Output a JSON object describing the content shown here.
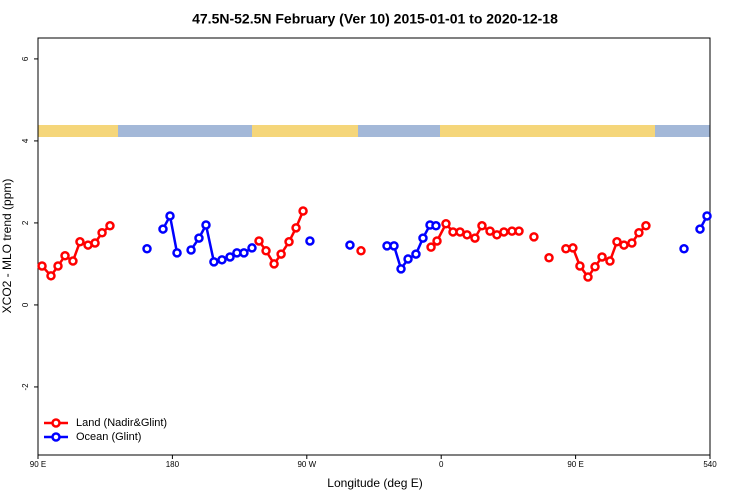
{
  "chart_data": {
    "type": "line",
    "title": "47.5N-52.5N February (Ver 10)   2015-01-01 to 2020-12-18",
    "x_label": "Longitude (deg E)",
    "y_label": "XCO2 - MLO trend (ppm)",
    "xlim": [
      90,
      540
    ],
    "ylim": [
      -3.66,
      6.51
    ],
    "xticks": [
      {
        "value": 90,
        "label": "90 E"
      },
      180,
      {
        "value": 270,
        "label": "90 W"
      },
      {
        "value": 360,
        "label": "0"
      },
      {
        "value": 450,
        "label": "90 E"
      },
      540
    ],
    "yticks": [
      -2,
      0,
      2,
      4,
      6
    ],
    "legend": "bottom-left",
    "series": [
      {
        "name": "Land (Nadir&Glint)",
        "color": "#ff0000",
        "x": [
          92.7,
          98.7,
          103.4,
          108.1,
          113.4,
          118.1,
          123.5,
          128.2,
          132.9,
          138.2,
          null,
          238.0,
          242.7,
          248.1,
          252.8,
          258.1,
          262.8,
          267.5,
          null,
          306.3,
          null,
          353.2,
          357.2,
          363.2,
          367.9,
          372.6,
          377.3,
          382.6,
          387.3,
          392.7,
          397.3,
          402.0,
          407.4,
          412.1,
          null,
          422.1,
          null,
          432.2,
          null,
          443.5,
          448.2,
          452.9,
          458.3,
          463.0,
          467.7,
          473.0,
          477.7,
          482.4,
          487.7,
          492.4,
          497.1
        ],
        "values": [
          0.95,
          0.71,
          0.95,
          1.2,
          1.07,
          1.54,
          1.46,
          1.51,
          1.76,
          1.93,
          null,
          1.56,
          1.32,
          1.0,
          1.24,
          1.54,
          1.88,
          2.29,
          null,
          1.32,
          null,
          1.41,
          1.56,
          1.98,
          1.78,
          1.78,
          1.71,
          1.63,
          1.93,
          1.8,
          1.71,
          1.78,
          1.8,
          1.8,
          null,
          1.66,
          null,
          1.15,
          null,
          1.37,
          1.39,
          0.95,
          0.68,
          0.93,
          1.17,
          1.07,
          1.54,
          1.46,
          1.51,
          1.76,
          1.93
        ]
      },
      {
        "name": "Ocean (Glint)",
        "color": "#0000ff",
        "x": [
          163.0,
          null,
          173.7,
          178.4,
          183.1,
          null,
          192.5,
          197.8,
          202.5,
          207.8,
          213.2,
          218.6,
          223.2,
          227.9,
          233.3,
          null,
          272.1,
          null,
          298.9,
          null,
          323.7,
          328.4,
          333.1,
          337.8,
          343.1,
          347.8,
          352.5,
          356.5,
          null,
          522.6,
          null,
          533.3,
          538.0
        ],
        "values": [
          1.37,
          null,
          1.85,
          2.17,
          1.27,
          null,
          1.34,
          1.63,
          1.95,
          1.05,
          1.1,
          1.17,
          1.27,
          1.27,
          1.39,
          null,
          1.56,
          null,
          1.46,
          null,
          1.44,
          1.44,
          0.88,
          1.12,
          1.24,
          1.63,
          1.95,
          1.93,
          null,
          1.37,
          null,
          1.85,
          2.17
        ]
      }
    ]
  }
}
